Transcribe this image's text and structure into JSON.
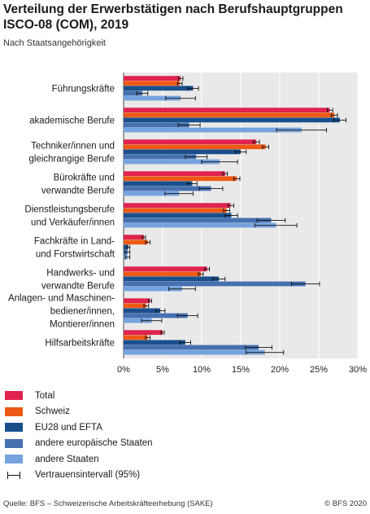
{
  "header": {
    "title_line1": "Verteilung der Erwerbstätigen nach Berufshauptgruppen",
    "title_line2": "ISCO-08 (COM), 2019",
    "subtitle": "Nach Staatsangehörigkeit"
  },
  "footer": {
    "source": "Quelle: BFS – Schweizerische Arbeitskräfteerhebung (SAKE)",
    "copyright": "© BFS 2020"
  },
  "legend": {
    "ci_label": "Vertrauensintervall (95%)"
  },
  "chart_data": {
    "type": "bar",
    "orientation": "horizontal",
    "categories": [
      [
        "Führungskräfte"
      ],
      [
        "akademische Berufe"
      ],
      [
        "Techniker/innen und",
        "gleichrangige Berufe"
      ],
      [
        "Bürokräfte und",
        "verwandte Berufe"
      ],
      [
        "Dienstleistungsberufe",
        "und Verkäufer/innen"
      ],
      [
        "Fachkräfte in Land-",
        "und Forstwirtschaft"
      ],
      [
        "Handwerks- und",
        "verwandte Berufe"
      ],
      [
        "Anlagen- und Maschinen-",
        "bediener/innen,",
        "Montierer/innen"
      ],
      [
        "Hilfsarbeitskräfte"
      ]
    ],
    "series": [
      {
        "name": "Total",
        "color": "#e0234e",
        "values": [
          7.3,
          26.4,
          17.0,
          13.0,
          13.7,
          2.6,
          10.7,
          3.4,
          5.0
        ],
        "ci": [
          [
            7.0,
            7.6
          ],
          [
            26.1,
            26.8
          ],
          [
            16.6,
            17.4
          ],
          [
            12.7,
            13.3
          ],
          [
            13.4,
            14.1
          ],
          [
            2.4,
            2.8
          ],
          [
            10.4,
            11.0
          ],
          [
            3.2,
            3.6
          ],
          [
            4.8,
            5.2
          ]
        ]
      },
      {
        "name": "Schweiz",
        "color": "#ee5a16",
        "values": [
          7.2,
          27.0,
          18.2,
          14.5,
          13.2,
          3.1,
          9.9,
          2.9,
          3.1
        ],
        "ci": [
          [
            6.9,
            7.5
          ],
          [
            26.6,
            27.4
          ],
          [
            17.8,
            18.6
          ],
          [
            14.1,
            14.9
          ],
          [
            12.8,
            13.6
          ],
          [
            2.8,
            3.4
          ],
          [
            9.6,
            10.2
          ],
          [
            2.6,
            3.2
          ],
          [
            2.8,
            3.4
          ]
        ]
      },
      {
        "name": "EU28 und EFTA",
        "color": "#1a4f8c",
        "values": [
          8.9,
          27.7,
          15.0,
          8.8,
          13.8,
          0.6,
          12.2,
          4.7,
          7.9
        ],
        "ci": [
          [
            8.2,
            9.6
          ],
          [
            26.9,
            28.5
          ],
          [
            14.3,
            15.7
          ],
          [
            8.2,
            9.4
          ],
          [
            13.0,
            14.6
          ],
          [
            0.4,
            0.8
          ],
          [
            11.4,
            13.0
          ],
          [
            4.1,
            5.3
          ],
          [
            7.2,
            8.6
          ]
        ]
      },
      {
        "name": "andere europäische Staaten",
        "color": "#4670b0",
        "values": [
          2.4,
          8.4,
          9.3,
          11.2,
          18.9,
          0.5,
          23.3,
          8.2,
          17.3
        ],
        "ci": [
          [
            1.7,
            3.1
          ],
          [
            7.0,
            9.8
          ],
          [
            7.9,
            10.7
          ],
          [
            9.7,
            12.7
          ],
          [
            17.1,
            20.7
          ],
          [
            0.2,
            0.8
          ],
          [
            21.5,
            25.1
          ],
          [
            6.9,
            9.5
          ],
          [
            15.6,
            19.0
          ]
        ]
      },
      {
        "name": "andere Staaten",
        "color": "#76a3dd",
        "values": [
          7.3,
          22.8,
          12.3,
          7.1,
          19.5,
          0.5,
          7.5,
          3.6,
          18.1
        ],
        "ci": [
          [
            5.4,
            9.2
          ],
          [
            19.6,
            26.0
          ],
          [
            10.0,
            14.6
          ],
          [
            5.3,
            8.9
          ],
          [
            16.8,
            22.2
          ],
          [
            0.2,
            0.8
          ],
          [
            5.8,
            9.2
          ],
          [
            2.3,
            4.9
          ],
          [
            15.7,
            20.5
          ]
        ]
      }
    ],
    "xlim": [
      0,
      30
    ],
    "xticks": [
      "0%",
      "5%",
      "10%",
      "15%",
      "20%",
      "25%",
      "30%"
    ],
    "grid": true,
    "legend_position": "bottom-left"
  }
}
